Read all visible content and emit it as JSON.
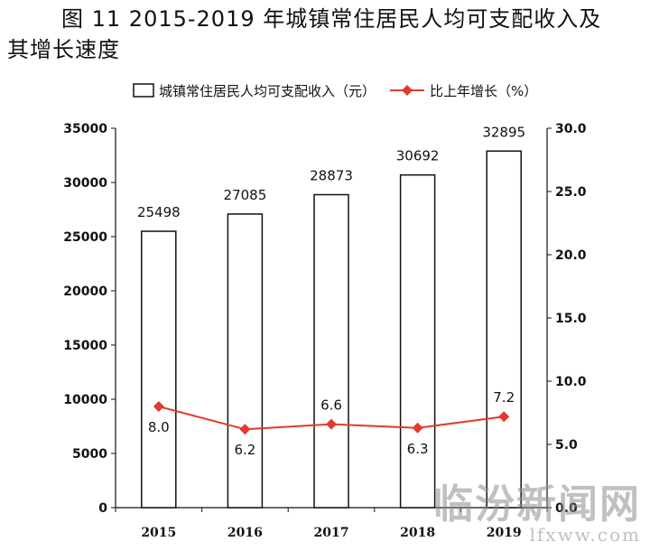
{
  "title_line1": "图 11  2015-2019 年城镇常住居民人均可支配收入及",
  "title_line2": "其增长速度",
  "watermark": {
    "main": "临汾新闻网",
    "sub": "lfxww.com"
  },
  "colors": {
    "bar_fill": "#ffffff",
    "bar_stroke": "#111111",
    "line": "#e23a2e",
    "axis": "#111111"
  },
  "chart_data": {
    "type": "bar",
    "categories": [
      "2015",
      "2016",
      "2017",
      "2018",
      "2019"
    ],
    "series": [
      {
        "name": "城镇常住居民人均可支配收入（元）",
        "type": "bar",
        "axis": "left",
        "values": [
          25498,
          27085,
          28873,
          30692,
          32895
        ],
        "labels": [
          "25498",
          "27085",
          "28873",
          "30692",
          "32895"
        ]
      },
      {
        "name": "比上年增长（%）",
        "type": "line",
        "axis": "right",
        "values": [
          8.0,
          6.2,
          6.6,
          6.3,
          7.2
        ],
        "labels": [
          "8.0",
          "6.2",
          "6.6",
          "6.3",
          "7.2"
        ]
      }
    ],
    "y_left": {
      "min": 0,
      "max": 35000,
      "ticks": [
        "0",
        "5000",
        "10000",
        "15000",
        "20000",
        "25000",
        "30000",
        "35000"
      ]
    },
    "y_right": {
      "min": 0,
      "max": 30,
      "ticks": [
        "0.0",
        "5.0",
        "10.0",
        "15.0",
        "20.0",
        "25.0",
        "30.0"
      ]
    },
    "legend_position": "top",
    "grid": false
  }
}
